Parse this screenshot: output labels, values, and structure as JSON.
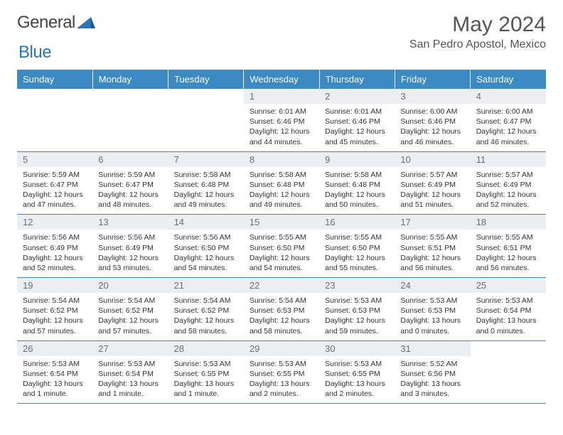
{
  "branding": {
    "logo_word1": "General",
    "logo_word2": "Blue",
    "logo_word1_color": "#666666",
    "logo_word2_color": "#2a76b8",
    "icon_color": "#2a76b8"
  },
  "header": {
    "month_title": "May 2024",
    "location": "San Pedro Apostol, Mexico"
  },
  "style": {
    "header_bg": "#3b8ac4",
    "header_text": "#ffffff",
    "daynum_bg": "#eceff1",
    "daynum_text": "#6a6f75",
    "body_text": "#333333",
    "cell_border": "#3b8ac4",
    "title_fontsize": 30,
    "location_fontsize": 16,
    "dayheader_fontsize": 13,
    "content_fontsize": 10.5
  },
  "day_headers": [
    "Sunday",
    "Monday",
    "Tuesday",
    "Wednesday",
    "Thursday",
    "Friday",
    "Saturday"
  ],
  "weeks": [
    [
      null,
      null,
      null,
      {
        "num": "1",
        "sunrise": "Sunrise: 6:01 AM",
        "sunset": "Sunset: 6:46 PM",
        "day1": "Daylight: 12 hours",
        "day2": "and 44 minutes."
      },
      {
        "num": "2",
        "sunrise": "Sunrise: 6:01 AM",
        "sunset": "Sunset: 6:46 PM",
        "day1": "Daylight: 12 hours",
        "day2": "and 45 minutes."
      },
      {
        "num": "3",
        "sunrise": "Sunrise: 6:00 AM",
        "sunset": "Sunset: 6:46 PM",
        "day1": "Daylight: 12 hours",
        "day2": "and 46 minutes."
      },
      {
        "num": "4",
        "sunrise": "Sunrise: 6:00 AM",
        "sunset": "Sunset: 6:47 PM",
        "day1": "Daylight: 12 hours",
        "day2": "and 46 minutes."
      }
    ],
    [
      {
        "num": "5",
        "sunrise": "Sunrise: 5:59 AM",
        "sunset": "Sunset: 6:47 PM",
        "day1": "Daylight: 12 hours",
        "day2": "and 47 minutes."
      },
      {
        "num": "6",
        "sunrise": "Sunrise: 5:59 AM",
        "sunset": "Sunset: 6:47 PM",
        "day1": "Daylight: 12 hours",
        "day2": "and 48 minutes."
      },
      {
        "num": "7",
        "sunrise": "Sunrise: 5:58 AM",
        "sunset": "Sunset: 6:48 PM",
        "day1": "Daylight: 12 hours",
        "day2": "and 49 minutes."
      },
      {
        "num": "8",
        "sunrise": "Sunrise: 5:58 AM",
        "sunset": "Sunset: 6:48 PM",
        "day1": "Daylight: 12 hours",
        "day2": "and 49 minutes."
      },
      {
        "num": "9",
        "sunrise": "Sunrise: 5:58 AM",
        "sunset": "Sunset: 6:48 PM",
        "day1": "Daylight: 12 hours",
        "day2": "and 50 minutes."
      },
      {
        "num": "10",
        "sunrise": "Sunrise: 5:57 AM",
        "sunset": "Sunset: 6:49 PM",
        "day1": "Daylight: 12 hours",
        "day2": "and 51 minutes."
      },
      {
        "num": "11",
        "sunrise": "Sunrise: 5:57 AM",
        "sunset": "Sunset: 6:49 PM",
        "day1": "Daylight: 12 hours",
        "day2": "and 52 minutes."
      }
    ],
    [
      {
        "num": "12",
        "sunrise": "Sunrise: 5:56 AM",
        "sunset": "Sunset: 6:49 PM",
        "day1": "Daylight: 12 hours",
        "day2": "and 52 minutes."
      },
      {
        "num": "13",
        "sunrise": "Sunrise: 5:56 AM",
        "sunset": "Sunset: 6:49 PM",
        "day1": "Daylight: 12 hours",
        "day2": "and 53 minutes."
      },
      {
        "num": "14",
        "sunrise": "Sunrise: 5:56 AM",
        "sunset": "Sunset: 6:50 PM",
        "day1": "Daylight: 12 hours",
        "day2": "and 54 minutes."
      },
      {
        "num": "15",
        "sunrise": "Sunrise: 5:55 AM",
        "sunset": "Sunset: 6:50 PM",
        "day1": "Daylight: 12 hours",
        "day2": "and 54 minutes."
      },
      {
        "num": "16",
        "sunrise": "Sunrise: 5:55 AM",
        "sunset": "Sunset: 6:50 PM",
        "day1": "Daylight: 12 hours",
        "day2": "and 55 minutes."
      },
      {
        "num": "17",
        "sunrise": "Sunrise: 5:55 AM",
        "sunset": "Sunset: 6:51 PM",
        "day1": "Daylight: 12 hours",
        "day2": "and 56 minutes."
      },
      {
        "num": "18",
        "sunrise": "Sunrise: 5:55 AM",
        "sunset": "Sunset: 6:51 PM",
        "day1": "Daylight: 12 hours",
        "day2": "and 56 minutes."
      }
    ],
    [
      {
        "num": "19",
        "sunrise": "Sunrise: 5:54 AM",
        "sunset": "Sunset: 6:52 PM",
        "day1": "Daylight: 12 hours",
        "day2": "and 57 minutes."
      },
      {
        "num": "20",
        "sunrise": "Sunrise: 5:54 AM",
        "sunset": "Sunset: 6:52 PM",
        "day1": "Daylight: 12 hours",
        "day2": "and 57 minutes."
      },
      {
        "num": "21",
        "sunrise": "Sunrise: 5:54 AM",
        "sunset": "Sunset: 6:52 PM",
        "day1": "Daylight: 12 hours",
        "day2": "and 58 minutes."
      },
      {
        "num": "22",
        "sunrise": "Sunrise: 5:54 AM",
        "sunset": "Sunset: 6:53 PM",
        "day1": "Daylight: 12 hours",
        "day2": "and 58 minutes."
      },
      {
        "num": "23",
        "sunrise": "Sunrise: 5:53 AM",
        "sunset": "Sunset: 6:53 PM",
        "day1": "Daylight: 12 hours",
        "day2": "and 59 minutes."
      },
      {
        "num": "24",
        "sunrise": "Sunrise: 5:53 AM",
        "sunset": "Sunset: 6:53 PM",
        "day1": "Daylight: 13 hours",
        "day2": "and 0 minutes."
      },
      {
        "num": "25",
        "sunrise": "Sunrise: 5:53 AM",
        "sunset": "Sunset: 6:54 PM",
        "day1": "Daylight: 13 hours",
        "day2": "and 0 minutes."
      }
    ],
    [
      {
        "num": "26",
        "sunrise": "Sunrise: 5:53 AM",
        "sunset": "Sunset: 6:54 PM",
        "day1": "Daylight: 13 hours",
        "day2": "and 1 minute."
      },
      {
        "num": "27",
        "sunrise": "Sunrise: 5:53 AM",
        "sunset": "Sunset: 6:54 PM",
        "day1": "Daylight: 13 hours",
        "day2": "and 1 minute."
      },
      {
        "num": "28",
        "sunrise": "Sunrise: 5:53 AM",
        "sunset": "Sunset: 6:55 PM",
        "day1": "Daylight: 13 hours",
        "day2": "and 1 minute."
      },
      {
        "num": "29",
        "sunrise": "Sunrise: 5:53 AM",
        "sunset": "Sunset: 6:55 PM",
        "day1": "Daylight: 13 hours",
        "day2": "and 2 minutes."
      },
      {
        "num": "30",
        "sunrise": "Sunrise: 5:53 AM",
        "sunset": "Sunset: 6:55 PM",
        "day1": "Daylight: 13 hours",
        "day2": "and 2 minutes."
      },
      {
        "num": "31",
        "sunrise": "Sunrise: 5:52 AM",
        "sunset": "Sunset: 6:56 PM",
        "day1": "Daylight: 13 hours",
        "day2": "and 3 minutes."
      },
      null
    ]
  ]
}
